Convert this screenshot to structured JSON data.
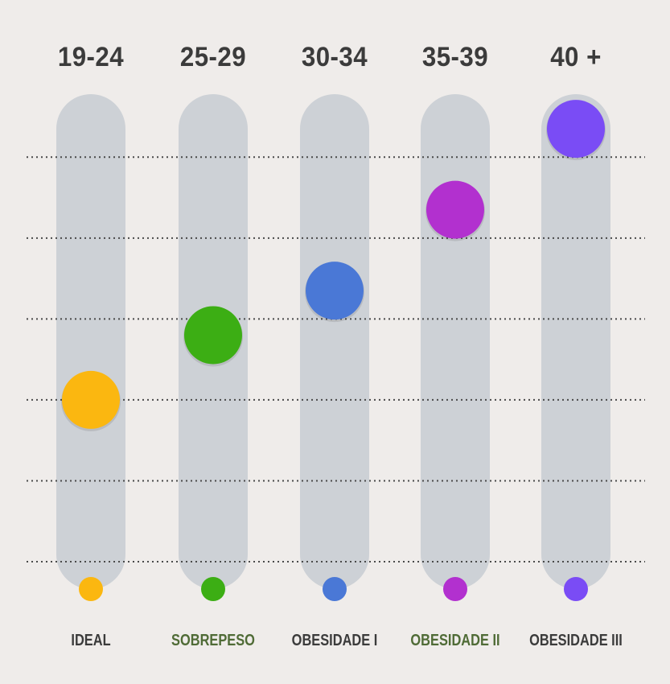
{
  "chart_data": {
    "type": "bar",
    "title": "",
    "xlabel": "",
    "ylabel": "",
    "ylim": [
      0,
      5.5
    ],
    "grid": true,
    "categories": [
      "19-24",
      "25-29",
      "30-34",
      "35-39",
      "40 +"
    ],
    "category_names": [
      "IDEAL",
      "SOBREPESO",
      "OBESIDADE I",
      "OBESIDADE II",
      "OBESIDADE III"
    ],
    "values": [
      2.0,
      2.8,
      3.35,
      4.35,
      5.35
    ],
    "colors": [
      "#fbb710",
      "#3cae14",
      "#4a78d6",
      "#b230cf",
      "#7a4cf5"
    ],
    "label_colors": [
      "#3b3b3b",
      "#4f6b36",
      "#3b3b3b",
      "#4f6b36",
      "#3b3b3b"
    ]
  }
}
